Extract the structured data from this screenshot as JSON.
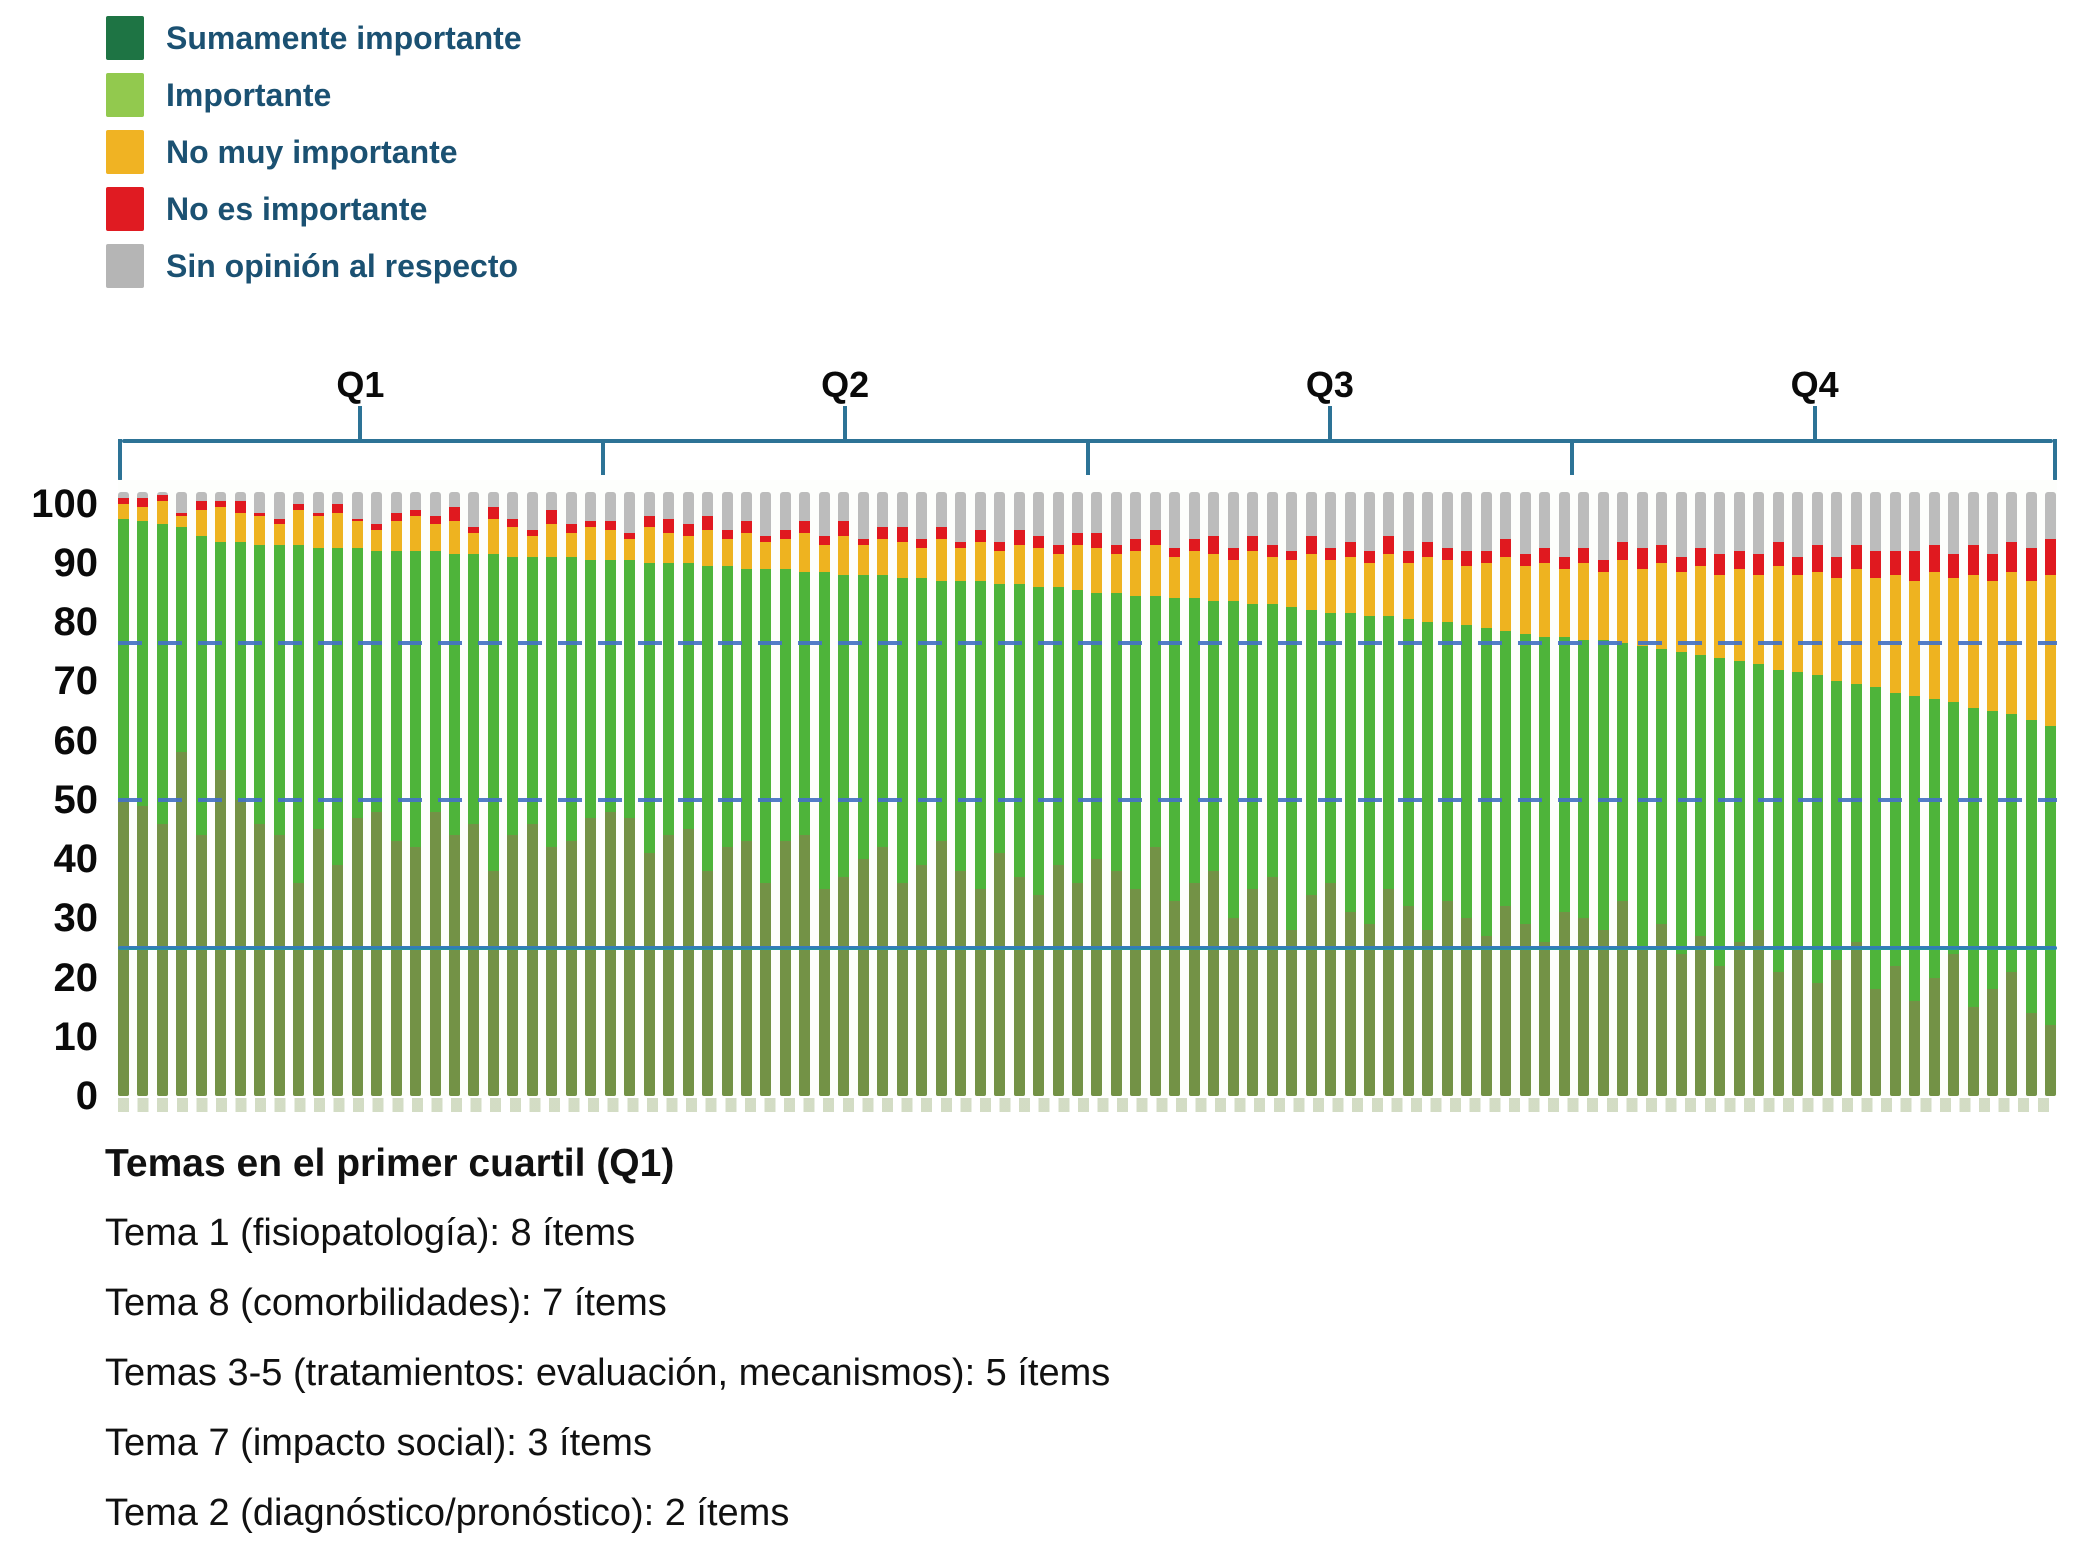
{
  "legend": {
    "text_color": "#1b5172",
    "items": [
      {
        "label": "Sumamente importante",
        "color": "#1e7444",
        "bar_color": "#739246"
      },
      {
        "label": "Importante",
        "color": "#92c94e",
        "bar_color": "#4eb43a"
      },
      {
        "label": "No muy importante",
        "color": "#f0b323",
        "bar_color": "#eeb320"
      },
      {
        "label": "No es importante",
        "color": "#e01b22",
        "bar_color": "#e0191f"
      },
      {
        "label": "Sin opinión al respecto",
        "color": "#b5b5b5",
        "bar_color": "#bcbcbc"
      }
    ]
  },
  "quartiles": {
    "labels": [
      "Q1",
      "Q2",
      "Q3",
      "Q4"
    ],
    "bracket_color": "#2d7396"
  },
  "y_axis": {
    "ticks": [
      100,
      90,
      80,
      70,
      60,
      50,
      40,
      30,
      20,
      10,
      0
    ]
  },
  "reference_lines": [
    {
      "value": 76.5,
      "style": "dashed",
      "color": "#4472c4"
    },
    {
      "value": 50,
      "style": "dashed",
      "color": "#4472c4"
    },
    {
      "value": 25,
      "style": "solid",
      "color": "#2f7fae"
    }
  ],
  "footer": {
    "title": "Temas en el primer cuartil (Q1)",
    "items": [
      "Tema 1 (fisiopatología): 8 ítems",
      "Tema 8 (comorbilidades): 7 ítems",
      "Temas 3-5 (tratamientos: evaluación, mecanismos): 5 ítems",
      "Tema 7 (impacto social): 3 ítems",
      "Tema 2 (diagnóstico/pronóstico): 2 ítems"
    ]
  },
  "chart_data": {
    "type": "bar",
    "stacked": true,
    "n_bars": 100,
    "bars_per_quartile": 25,
    "ylim": [
      0,
      100
    ],
    "series_order": [
      "Sumamente importante",
      "Importante",
      "No muy importante",
      "No es importante",
      "Sin opinión al respecto"
    ],
    "encoding": "per bar: [sumamente_top_pct, importante_cumulative_top_pct, no_muy_cumulative_top_pct, no_es_amount_pct]; sin_opinion fills remainder up to stack_total",
    "stack_total": 102,
    "bars": [
      [
        50,
        97.5,
        100,
        1
      ],
      [
        49,
        97,
        99.5,
        1.5
      ],
      [
        46,
        96.5,
        100.5,
        1
      ],
      [
        58,
        96,
        98,
        0.5
      ],
      [
        44,
        94.5,
        99,
        1.5
      ],
      [
        55,
        93.5,
        99.5,
        1
      ],
      [
        50,
        93.5,
        98.5,
        2
      ],
      [
        46,
        93,
        98,
        0.5
      ],
      [
        44,
        93,
        96.5,
        1
      ],
      [
        36,
        93,
        99,
        1
      ],
      [
        45,
        92.5,
        98,
        0.5
      ],
      [
        39,
        92.5,
        98.5,
        1.5
      ],
      [
        47,
        92.5,
        97,
        0.5
      ],
      [
        48,
        92,
        95.5,
        1
      ],
      [
        43,
        92,
        97,
        1.5
      ],
      [
        42,
        92,
        98,
        1
      ],
      [
        48,
        92,
        96.5,
        1.5
      ],
      [
        44,
        91.5,
        97,
        2.5
      ],
      [
        46,
        91.5,
        95,
        1
      ],
      [
        38,
        91.5,
        97.5,
        2
      ],
      [
        44,
        91,
        96,
        1.5
      ],
      [
        46,
        91,
        94.5,
        1
      ],
      [
        42,
        91,
        96.5,
        2.5
      ],
      [
        43,
        91,
        95,
        1.5
      ],
      [
        47,
        90.5,
        96,
        1
      ],
      [
        48,
        90.5,
        95.5,
        1.5
      ],
      [
        47,
        90.5,
        94,
        1
      ],
      [
        41,
        90,
        96,
        2
      ],
      [
        44,
        90,
        95,
        2.5
      ],
      [
        45,
        90,
        94.5,
        2
      ],
      [
        38,
        89.5,
        95.5,
        2.5
      ],
      [
        42,
        89.5,
        94,
        1.5
      ],
      [
        43,
        89,
        95,
        2
      ],
      [
        36,
        89,
        93.5,
        1
      ],
      [
        43,
        89,
        94,
        1.5
      ],
      [
        44,
        88.5,
        95,
        2
      ],
      [
        35,
        88.5,
        93,
        1.5
      ],
      [
        37,
        88,
        94.5,
        2.5
      ],
      [
        40,
        88,
        93,
        1
      ],
      [
        42,
        88,
        94,
        2
      ],
      [
        36,
        87.5,
        93.5,
        2.5
      ],
      [
        39,
        87.5,
        92.5,
        1.5
      ],
      [
        43,
        87,
        94,
        2
      ],
      [
        38,
        87,
        92.5,
        1
      ],
      [
        35,
        87,
        93.5,
        2
      ],
      [
        41,
        86.5,
        92,
        1.5
      ],
      [
        37,
        86.5,
        93,
        2.5
      ],
      [
        34,
        86,
        92.5,
        2
      ],
      [
        39,
        86,
        91.5,
        1.5
      ],
      [
        36,
        85.5,
        93,
        2
      ],
      [
        40,
        85,
        92.5,
        2.5
      ],
      [
        38,
        85,
        91.5,
        1.5
      ],
      [
        35,
        84.5,
        92,
        2
      ],
      [
        42,
        84.5,
        93,
        2.5
      ],
      [
        33,
        84,
        91,
        1.5
      ],
      [
        36,
        84,
        92,
        2
      ],
      [
        38,
        83.5,
        91.5,
        3
      ],
      [
        30,
        83.5,
        90.5,
        2
      ],
      [
        35,
        83,
        92,
        2.5
      ],
      [
        37,
        83,
        91,
        2
      ],
      [
        28,
        82.5,
        90.5,
        1.5
      ],
      [
        34,
        82,
        91.5,
        3
      ],
      [
        36,
        81.5,
        90.5,
        2
      ],
      [
        31,
        81.5,
        91,
        2.5
      ],
      [
        29,
        81,
        90,
        2
      ],
      [
        35,
        81,
        91.5,
        3
      ],
      [
        32,
        80.5,
        90,
        2
      ],
      [
        28,
        80,
        91,
        2.5
      ],
      [
        33,
        80,
        90.5,
        2
      ],
      [
        30,
        79.5,
        89.5,
        2.5
      ],
      [
        27,
        79,
        90,
        2
      ],
      [
        32,
        78.5,
        91,
        3
      ],
      [
        29,
        78,
        89.5,
        2
      ],
      [
        26,
        77.5,
        90,
        2.5
      ],
      [
        31,
        77.5,
        89,
        2
      ],
      [
        30,
        77,
        90,
        2.5
      ],
      [
        28,
        77,
        88.5,
        2
      ],
      [
        33,
        76.5,
        90.5,
        3
      ],
      [
        25,
        76,
        89,
        3.5
      ],
      [
        29,
        75.5,
        90,
        3
      ],
      [
        24,
        75,
        88.5,
        2.5
      ],
      [
        27,
        74.5,
        89.5,
        3
      ],
      [
        22,
        74,
        88,
        3.5
      ],
      [
        26,
        73.5,
        89,
        3
      ],
      [
        28,
        73,
        88,
        3.5
      ],
      [
        21,
        72,
        89.5,
        4
      ],
      [
        25,
        71.5,
        88,
        3
      ],
      [
        19,
        71,
        88.5,
        4.5
      ],
      [
        23,
        70,
        87.5,
        3.5
      ],
      [
        26,
        69.5,
        89,
        4
      ],
      [
        18,
        69,
        87.5,
        4.5
      ],
      [
        22,
        68,
        88,
        4
      ],
      [
        16,
        67.5,
        87,
        5
      ],
      [
        20,
        67,
        88.5,
        4.5
      ],
      [
        24,
        66.5,
        87.5,
        4
      ],
      [
        15,
        65.5,
        88,
        5
      ],
      [
        18,
        65,
        87,
        4.5
      ],
      [
        21,
        64.5,
        88.5,
        5
      ],
      [
        14,
        63.5,
        87,
        5.5
      ],
      [
        12,
        62.5,
        88,
        6
      ]
    ]
  }
}
